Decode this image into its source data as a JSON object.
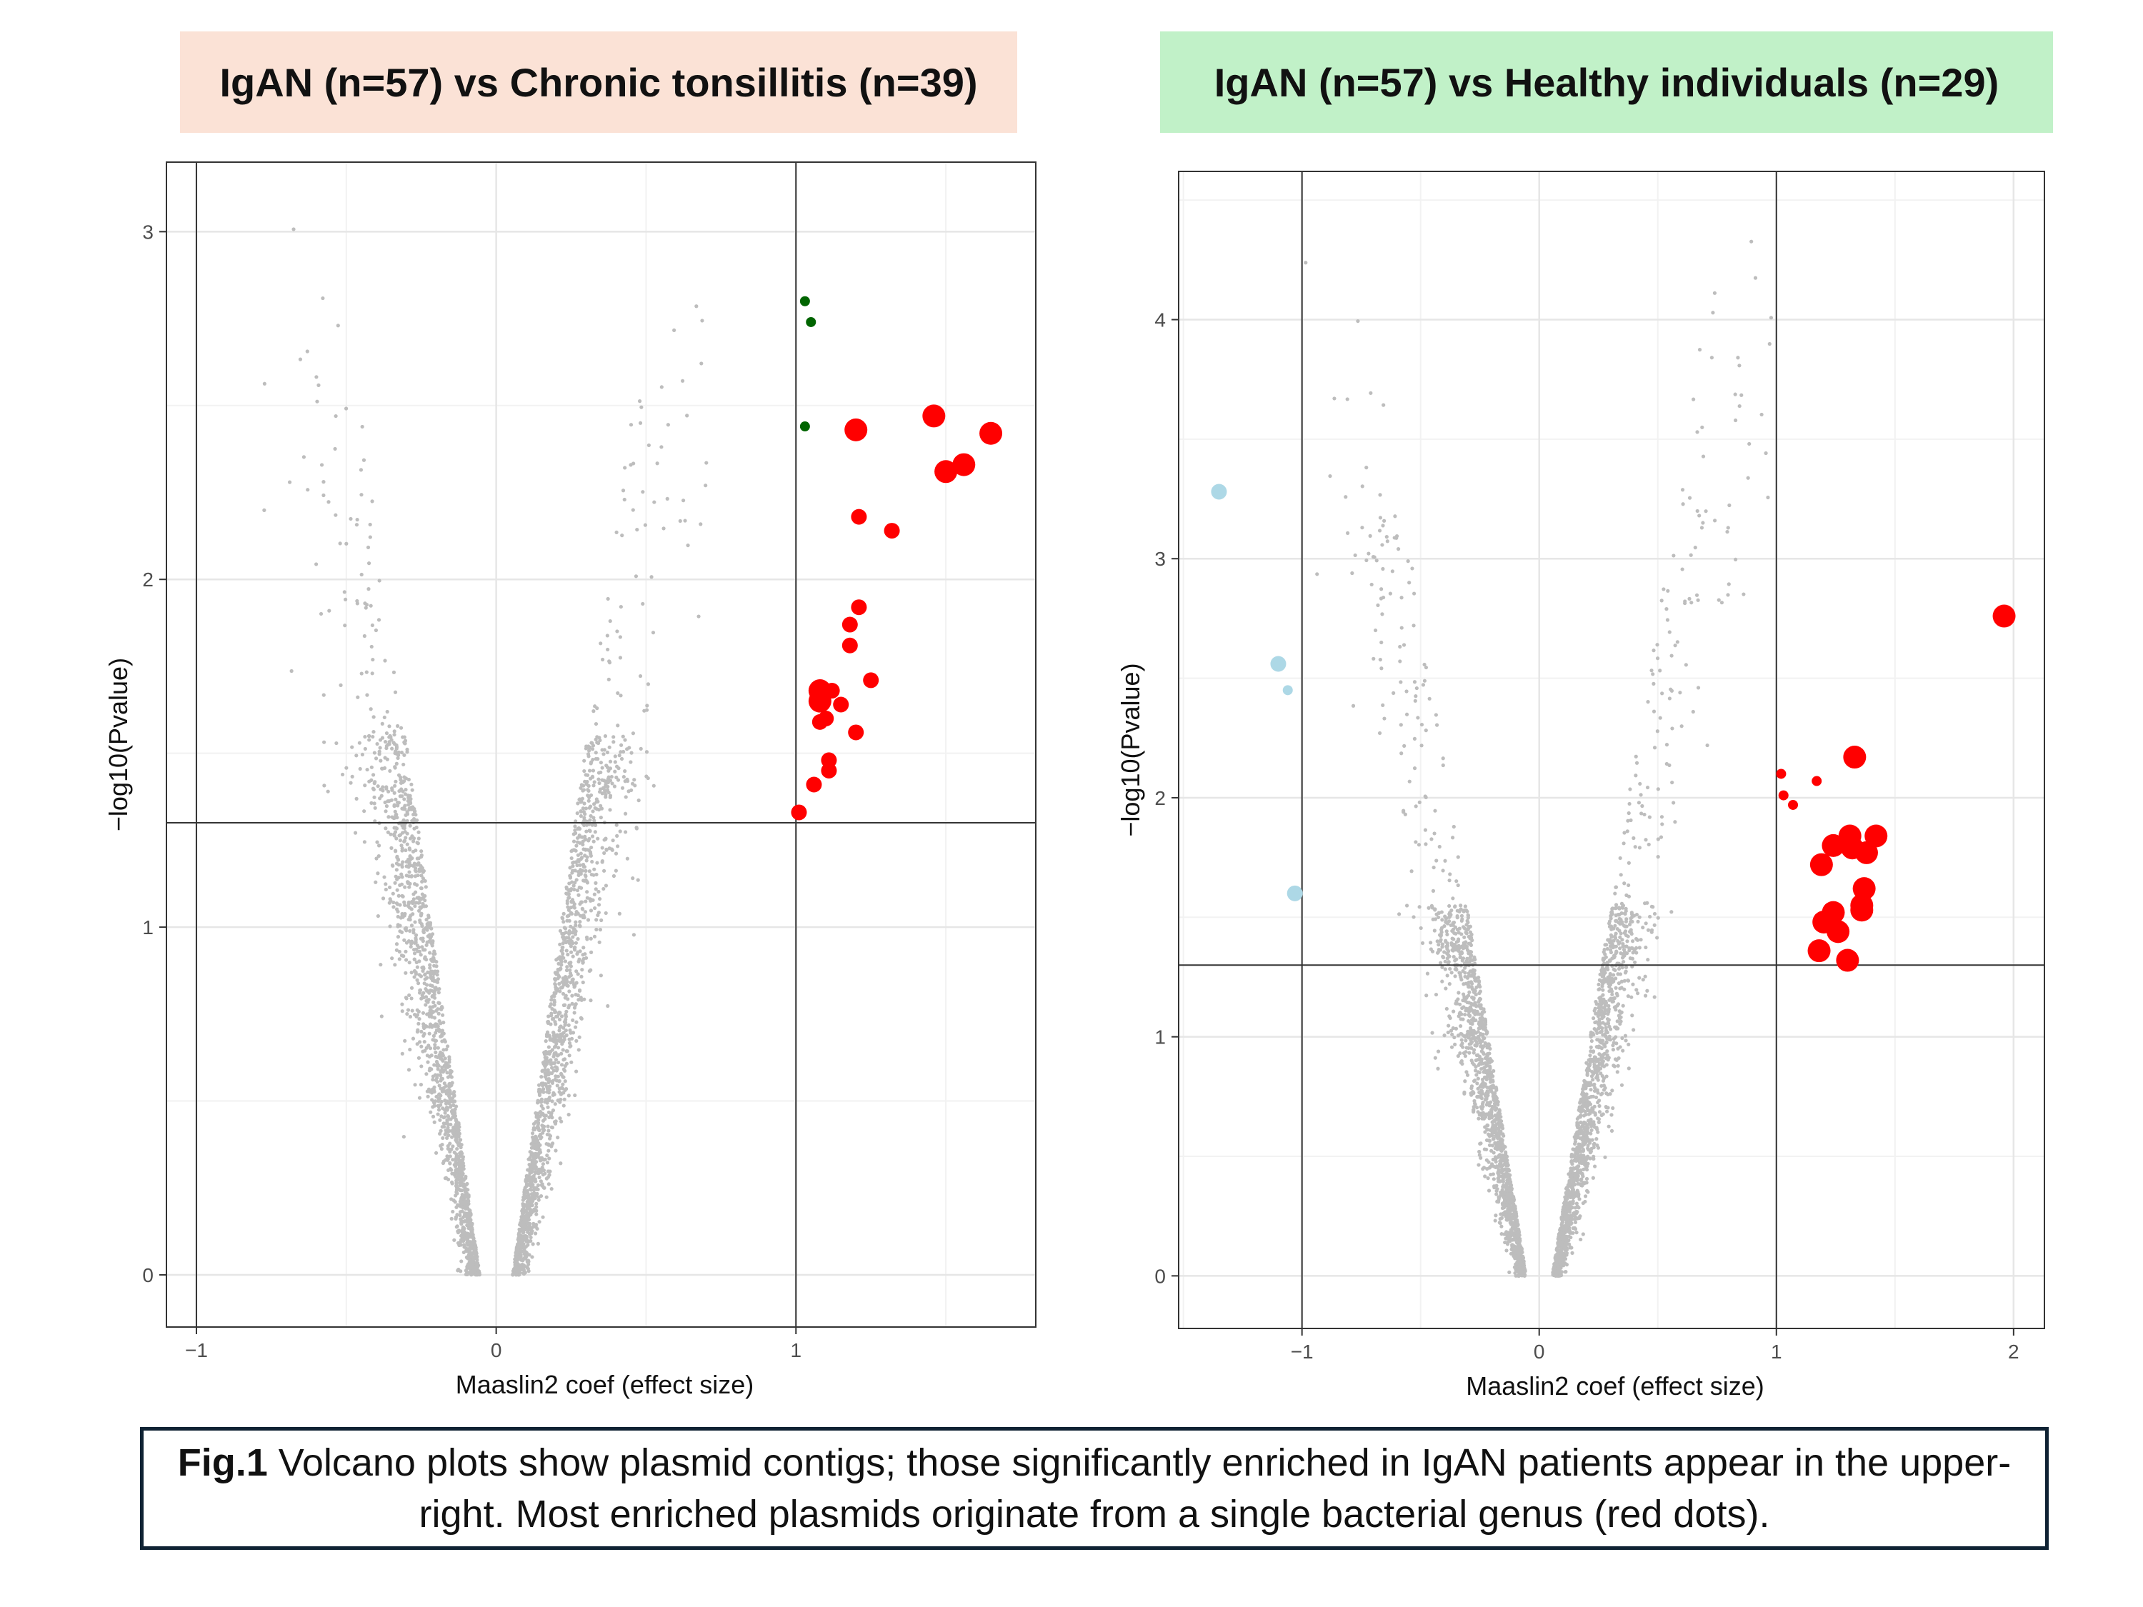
{
  "colors": {
    "left_banner_bg": "#fbe2d6",
    "right_banner_bg": "#c1f1c8",
    "background_points": "#bdbdbd",
    "enriched_points": "#ff0000",
    "left_other_points": "#006400",
    "right_depleted_points": "#add8e6"
  },
  "caption": {
    "label": "Fig.1",
    "text": " Volcano plots show plasmid contigs; those significantly enriched in IgAN patients appear in the upper-right. Most enriched plasmids originate from a single bacterial genus (red dots)."
  },
  "chart_data": [
    {
      "type": "scatter",
      "title": "IgAN (n=57) vs Chronic tonsillitis (n=39)",
      "xlabel": "Maaslin2 coef (effect size)",
      "ylabel": "−log10(Pvalue)",
      "xlim": [
        -1.1,
        1.8
      ],
      "ylim": [
        -0.15,
        3.2
      ],
      "xticks": [
        -1,
        0,
        1
      ],
      "yticks": [
        0,
        1,
        2,
        3
      ],
      "xtick_labels": [
        "−1",
        "0",
        "1"
      ],
      "ytick_labels": [
        "0",
        "1",
        "2",
        "3"
      ],
      "grid": true,
      "legend": "none",
      "threshold_lines": {
        "x": [
          -1,
          1
        ],
        "y": [
          1.3
        ]
      },
      "background_cloud": {
        "description_count": 3000,
        "shape": "volcano",
        "y_max": 3.05
      },
      "series": [
        {
          "color": "#ff0000",
          "points": [
            {
              "x": 1.2,
              "y": 2.43,
              "size": "large"
            },
            {
              "x": 1.46,
              "y": 2.47,
              "size": "large"
            },
            {
              "x": 1.5,
              "y": 2.31,
              "size": "large"
            },
            {
              "x": 1.56,
              "y": 2.33,
              "size": "large"
            },
            {
              "x": 1.65,
              "y": 2.42,
              "size": "large"
            },
            {
              "x": 1.21,
              "y": 2.18,
              "size": "medium"
            },
            {
              "x": 1.32,
              "y": 2.14,
              "size": "medium"
            },
            {
              "x": 1.21,
              "y": 1.92,
              "size": "medium"
            },
            {
              "x": 1.18,
              "y": 1.87,
              "size": "medium"
            },
            {
              "x": 1.18,
              "y": 1.81,
              "size": "medium"
            },
            {
              "x": 1.25,
              "y": 1.71,
              "size": "medium"
            },
            {
              "x": 1.08,
              "y": 1.68,
              "size": "large"
            },
            {
              "x": 1.12,
              "y": 1.68,
              "size": "medium"
            },
            {
              "x": 1.08,
              "y": 1.65,
              "size": "large"
            },
            {
              "x": 1.15,
              "y": 1.64,
              "size": "medium"
            },
            {
              "x": 1.1,
              "y": 1.6,
              "size": "medium"
            },
            {
              "x": 1.08,
              "y": 1.59,
              "size": "medium"
            },
            {
              "x": 1.2,
              "y": 1.56,
              "size": "medium"
            },
            {
              "x": 1.11,
              "y": 1.48,
              "size": "medium"
            },
            {
              "x": 1.11,
              "y": 1.45,
              "size": "medium"
            },
            {
              "x": 1.06,
              "y": 1.41,
              "size": "medium"
            },
            {
              "x": 1.01,
              "y": 1.33,
              "size": "medium"
            }
          ]
        },
        {
          "color": "#006400",
          "points": [
            {
              "x": 1.03,
              "y": 2.8,
              "size": "small"
            },
            {
              "x": 1.05,
              "y": 2.74,
              "size": "small"
            },
            {
              "x": 1.03,
              "y": 2.44,
              "size": "small"
            }
          ]
        }
      ]
    },
    {
      "type": "scatter",
      "title": "IgAN (n=57) vs Healthy individuals (n=29)",
      "xlabel": "Maaslin2 coef (effect size)",
      "ylabel": "−log10(Pvalue)",
      "xlim": [
        -1.52,
        2.13
      ],
      "ylim": [
        -0.22,
        4.62
      ],
      "xticks": [
        -1,
        0,
        1,
        2
      ],
      "yticks": [
        0,
        1,
        2,
        3,
        4
      ],
      "xtick_labels": [
        "−1",
        "0",
        "1",
        "2"
      ],
      "ytick_labels": [
        "0",
        "1",
        "2",
        "3",
        "4"
      ],
      "grid": true,
      "legend": "none",
      "threshold_lines": {
        "x": [
          -1,
          1
        ],
        "y": [
          1.3
        ]
      },
      "background_cloud": {
        "description_count": 3000,
        "shape": "volcano",
        "y_max": 4.4
      },
      "series": [
        {
          "color": "#ff0000",
          "points": [
            {
              "x": 1.96,
              "y": 2.76,
              "size": "large"
            },
            {
              "x": 1.33,
              "y": 2.17,
              "size": "large"
            },
            {
              "x": 1.02,
              "y": 2.1,
              "size": "small"
            },
            {
              "x": 1.17,
              "y": 2.07,
              "size": "small"
            },
            {
              "x": 1.03,
              "y": 2.01,
              "size": "small"
            },
            {
              "x": 1.07,
              "y": 1.97,
              "size": "small"
            },
            {
              "x": 1.31,
              "y": 1.84,
              "size": "large"
            },
            {
              "x": 1.42,
              "y": 1.84,
              "size": "large"
            },
            {
              "x": 1.24,
              "y": 1.8,
              "size": "large"
            },
            {
              "x": 1.32,
              "y": 1.79,
              "size": "large"
            },
            {
              "x": 1.38,
              "y": 1.77,
              "size": "large"
            },
            {
              "x": 1.19,
              "y": 1.72,
              "size": "large"
            },
            {
              "x": 1.37,
              "y": 1.62,
              "size": "large"
            },
            {
              "x": 1.36,
              "y": 1.55,
              "size": "large"
            },
            {
              "x": 1.36,
              "y": 1.53,
              "size": "large"
            },
            {
              "x": 1.24,
              "y": 1.52,
              "size": "large"
            },
            {
              "x": 1.2,
              "y": 1.48,
              "size": "large"
            },
            {
              "x": 1.26,
              "y": 1.44,
              "size": "large"
            },
            {
              "x": 1.18,
              "y": 1.36,
              "size": "large"
            },
            {
              "x": 1.3,
              "y": 1.32,
              "size": "large"
            }
          ]
        },
        {
          "color": "#add8e6",
          "points": [
            {
              "x": -1.35,
              "y": 3.28,
              "size": "medium"
            },
            {
              "x": -1.1,
              "y": 2.56,
              "size": "medium"
            },
            {
              "x": -1.06,
              "y": 2.45,
              "size": "small"
            },
            {
              "x": -1.03,
              "y": 1.6,
              "size": "medium"
            }
          ]
        }
      ]
    }
  ]
}
